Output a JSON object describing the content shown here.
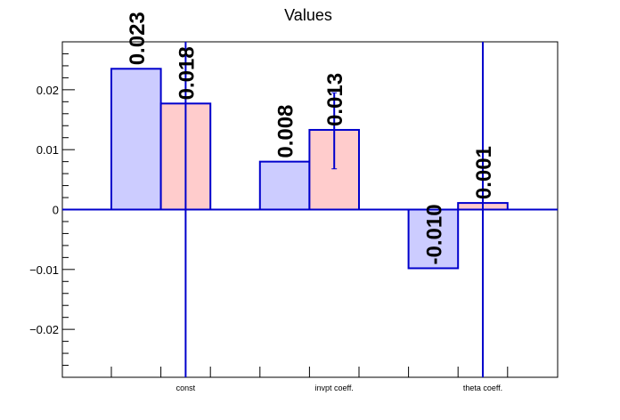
{
  "chart_data": {
    "type": "bar",
    "title": "Values",
    "xlabel": "",
    "ylabel": "",
    "categories": [
      "const",
      "invpt coeff.",
      "theta coeff."
    ],
    "ylim": [
      -0.028,
      0.028
    ],
    "yticks": [
      -0.02,
      -0.01,
      0,
      0.01,
      0.02
    ],
    "ytick_labels": [
      "−0.02",
      "−0.01",
      "0",
      "0.01",
      "0.02"
    ],
    "grid": false,
    "series": [
      {
        "values": [
          0.0235,
          0.0177,
          0.008
        ],
        "labels": [
          "0.023",
          "0.018",
          "0.008"
        ],
        "fill": "#ccccff",
        "stroke": "#0000cc"
      },
      {
        "values": [
          0.0133,
          -0.0098,
          0.0011
        ],
        "labels": [
          "0.013",
          "-0.010",
          "0.001"
        ],
        "fill": "#ffcccc",
        "stroke": "#0000cc"
      }
    ],
    "bar_order": [
      {
        "series": 0,
        "index": 0
      },
      {
        "series": 0,
        "index": 1
      },
      {
        "series": 0,
        "index": 2
      },
      {
        "series": 1,
        "index": 0
      },
      {
        "series": 1,
        "index": 1
      },
      {
        "series": 1,
        "index": 2
      }
    ],
    "bar_fill_override": [
      "#ccccff",
      "#ffcccc",
      "#ccccff",
      "#ffcccc",
      "#ccccff",
      "#ffcccc"
    ],
    "error_bars": [
      {
        "bar": 1,
        "low": -0.028,
        "high": 0.028
      },
      {
        "bar": 3,
        "low": 0.0068,
        "high": 0.0195
      },
      {
        "bar": 5,
        "low": -0.028,
        "high": 0.028
      }
    ],
    "axis_color": "#000000",
    "line_color": "#0000cc"
  }
}
